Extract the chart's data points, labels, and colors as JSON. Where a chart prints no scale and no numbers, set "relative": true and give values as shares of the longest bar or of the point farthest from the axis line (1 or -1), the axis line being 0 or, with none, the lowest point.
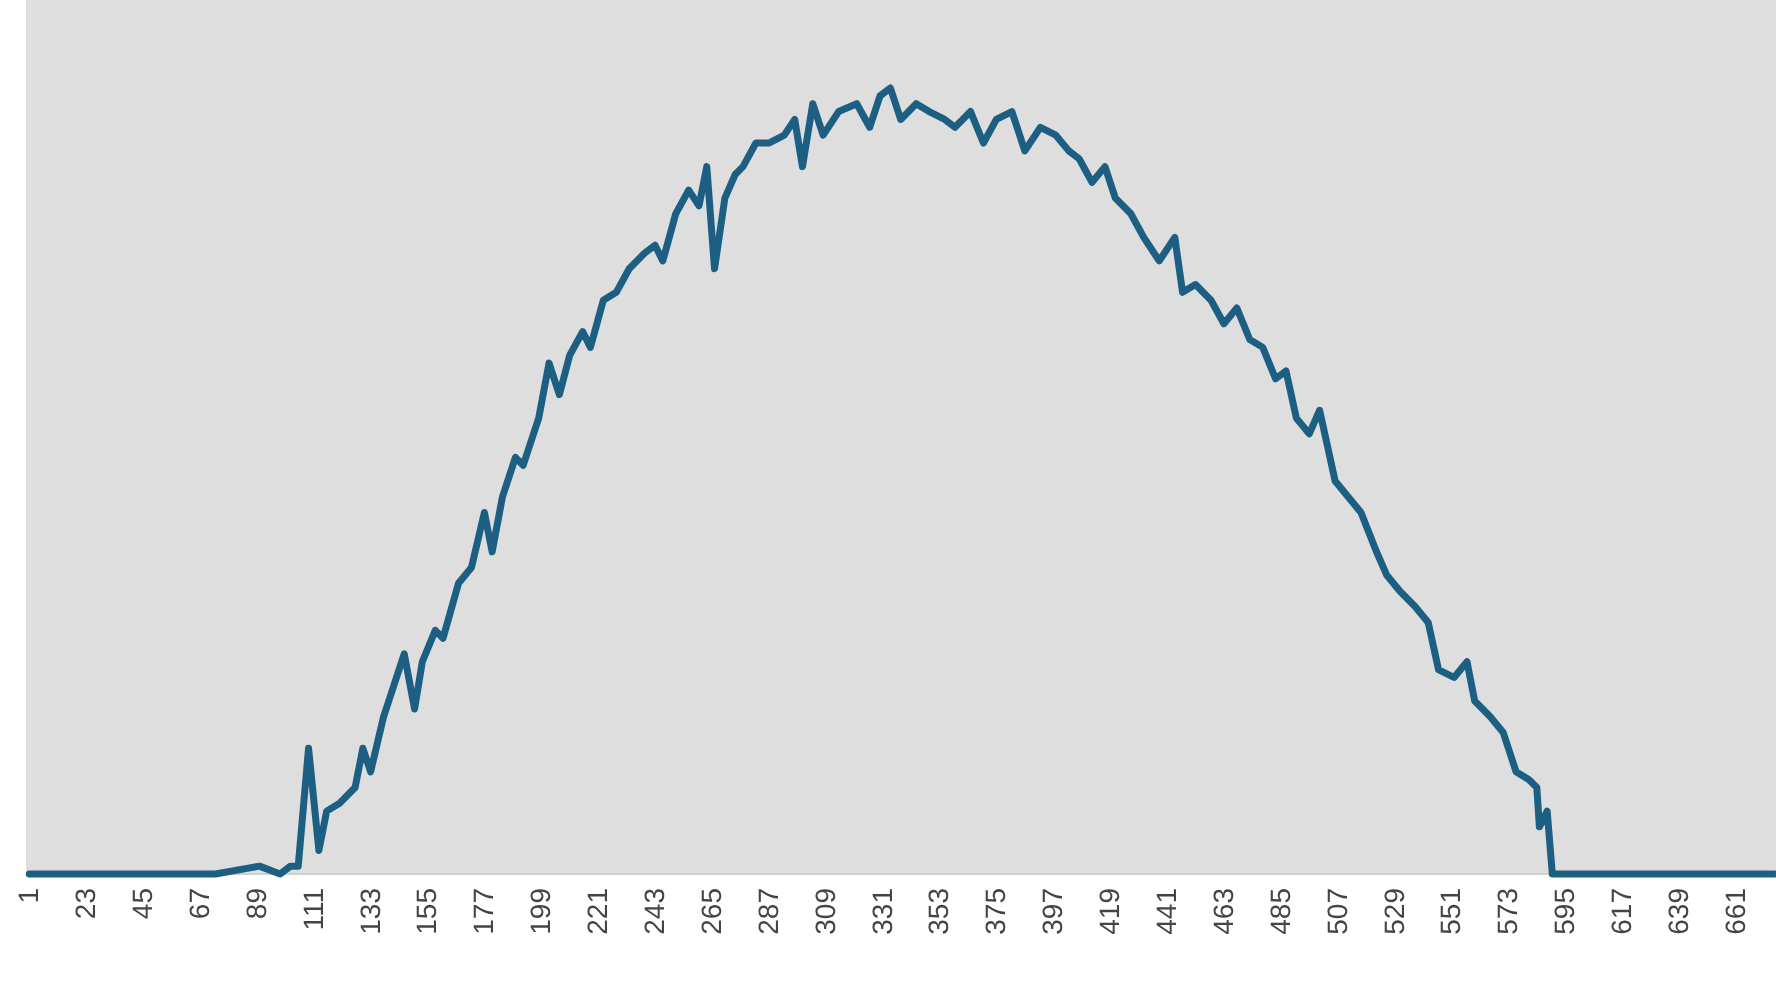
{
  "chart_data": {
    "type": "line",
    "relative": true,
    "xlim": [
      0.5,
      676.5
    ],
    "xticks": [
      1,
      23,
      45,
      67,
      89,
      111,
      133,
      155,
      177,
      199,
      221,
      243,
      265,
      287,
      309,
      331,
      353,
      375,
      397,
      419,
      441,
      463,
      485,
      507,
      529,
      551,
      573,
      595,
      617,
      639,
      661
    ],
    "x": [
      1,
      73,
      90,
      98,
      102,
      105,
      109,
      113,
      116,
      121,
      127,
      130,
      133,
      138,
      141,
      146,
      150,
      153,
      158,
      161,
      167,
      172,
      177,
      180,
      184,
      189,
      192,
      198,
      202,
      206,
      210,
      215,
      218,
      223,
      228,
      233,
      239,
      243,
      246,
      251,
      256,
      260,
      263,
      266,
      270,
      274,
      277,
      282,
      287,
      293,
      297,
      300,
      304,
      308,
      314,
      321,
      326,
      330,
      334,
      338,
      344,
      349,
      355,
      359,
      365,
      370,
      375,
      381,
      386,
      392,
      398,
      403,
      407,
      412,
      417,
      421,
      427,
      432,
      438,
      444,
      447,
      452,
      458,
      463,
      468,
      473,
      478,
      483,
      487,
      491,
      496,
      500,
      506,
      511,
      516,
      522,
      526,
      531,
      537,
      542,
      546,
      552,
      557,
      560,
      566,
      571,
      576,
      581,
      584,
      585,
      588,
      590,
      676
    ],
    "series": [
      {
        "color": "#1d5f82",
        "values": [
          0,
          0,
          0.01,
          0,
          0.01,
          0.01,
          0.16,
          0.03,
          0.08,
          0.09,
          0.11,
          0.16,
          0.13,
          0.2,
          0.23,
          0.28,
          0.21,
          0.27,
          0.31,
          0.3,
          0.37,
          0.39,
          0.46,
          0.41,
          0.48,
          0.53,
          0.52,
          0.58,
          0.65,
          0.61,
          0.66,
          0.69,
          0.67,
          0.73,
          0.74,
          0.77,
          0.79,
          0.8,
          0.78,
          0.84,
          0.87,
          0.85,
          0.9,
          0.77,
          0.86,
          0.89,
          0.9,
          0.93,
          0.93,
          0.94,
          0.96,
          0.9,
          0.98,
          0.94,
          0.97,
          0.98,
          0.95,
          0.99,
          1,
          0.96,
          0.98,
          0.97,
          0.96,
          0.95,
          0.97,
          0.93,
          0.96,
          0.97,
          0.92,
          0.95,
          0.94,
          0.92,
          0.91,
          0.88,
          0.9,
          0.86,
          0.84,
          0.81,
          0.78,
          0.81,
          0.74,
          0.75,
          0.73,
          0.7,
          0.72,
          0.68,
          0.67,
          0.63,
          0.64,
          0.58,
          0.56,
          0.59,
          0.5,
          0.48,
          0.46,
          0.41,
          0.38,
          0.36,
          0.34,
          0.32,
          0.26,
          0.25,
          0.27,
          0.22,
          0.2,
          0.18,
          0.13,
          0.12,
          0.11,
          0.06,
          0.08,
          0,
          0
        ]
      }
    ]
  }
}
